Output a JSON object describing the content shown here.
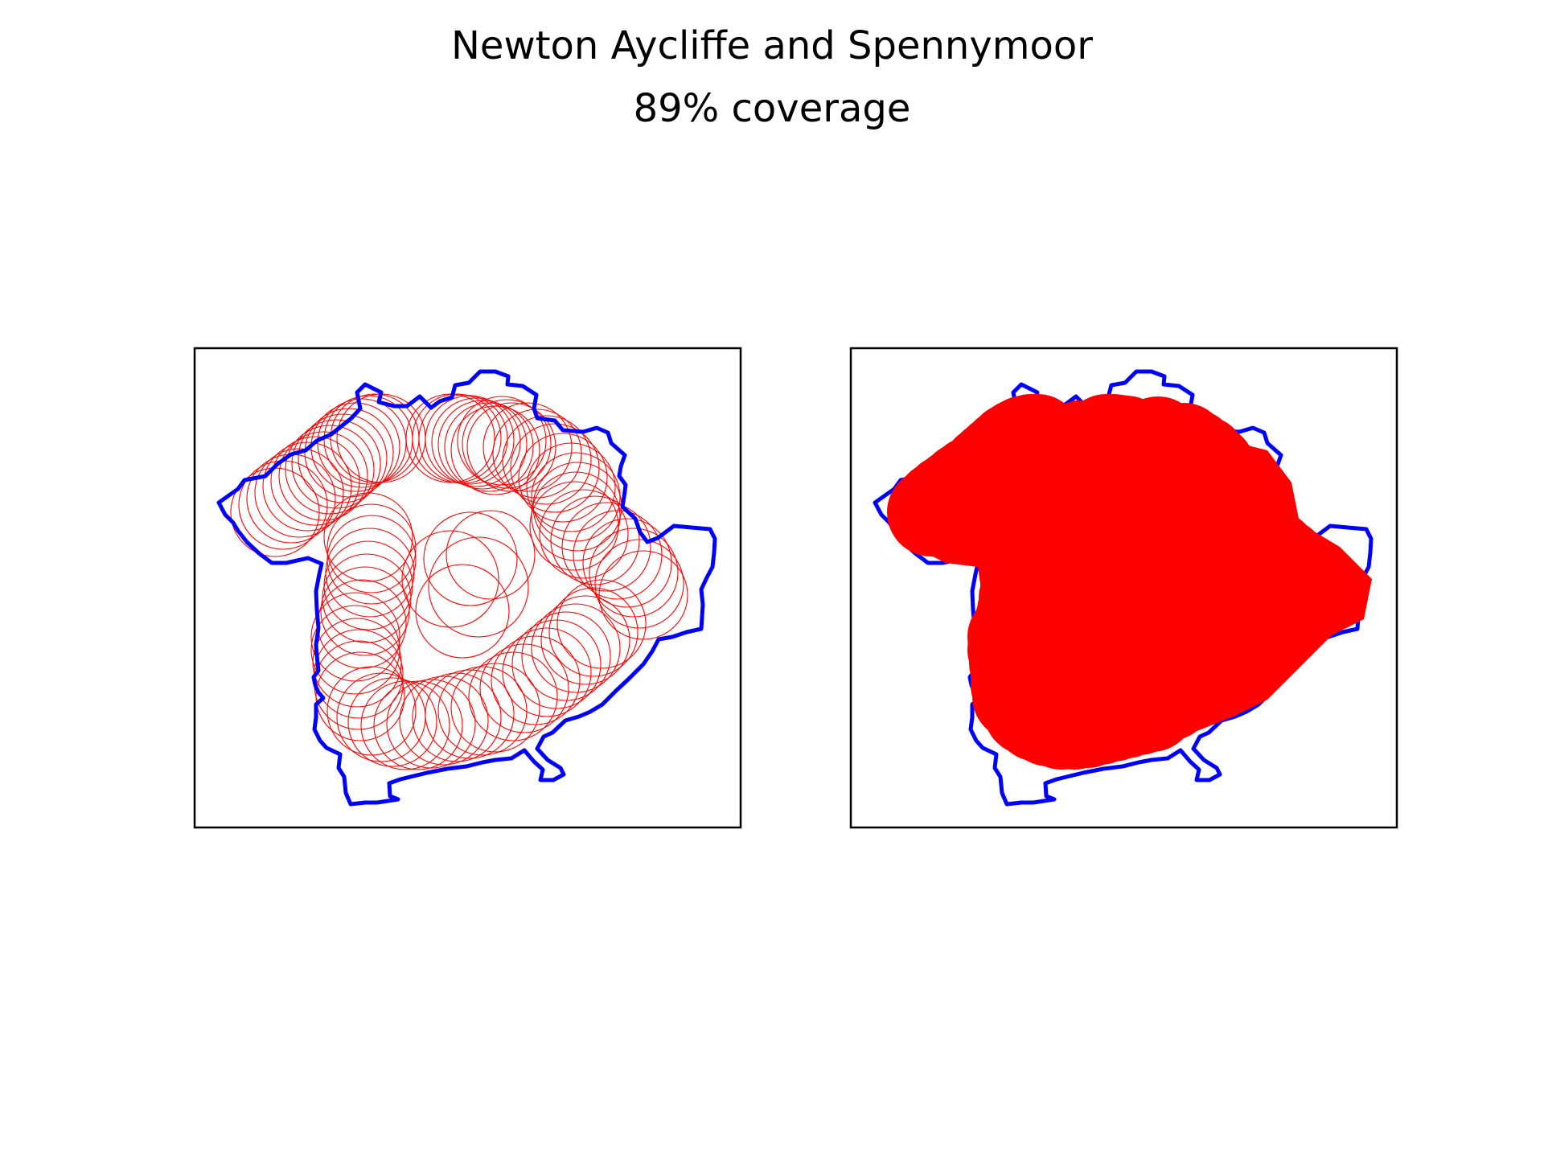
{
  "title": "Newton Aycliffe and Spennymoor",
  "subtitle": "89% coverage",
  "colors": {
    "boundary": "#0000ff",
    "circles": "#ff0000",
    "frame": "#000000",
    "background": "#ffffff"
  },
  "chart_data": [
    {
      "type": "scatter",
      "panel": "left",
      "description_hint": "boundary outline with circle outlines",
      "title": "",
      "xlabel": "",
      "ylabel": "",
      "ticks": false,
      "grid": false,
      "legend": "none",
      "circles_filled": false,
      "series": [
        {
          "name": "",
          "kind": "boundary",
          "color": "#0000ff"
        },
        {
          "name": "",
          "kind": "circles",
          "color": "#ff0000"
        }
      ]
    },
    {
      "type": "scatter",
      "panel": "right",
      "title": "",
      "xlabel": "",
      "ylabel": "",
      "ticks": false,
      "grid": false,
      "legend": "none",
      "circles_filled": true,
      "series": [
        {
          "name": "",
          "kind": "boundary",
          "color": "#0000ff"
        },
        {
          "name": "",
          "kind": "circles",
          "color": "#ff0000"
        }
      ]
    }
  ]
}
